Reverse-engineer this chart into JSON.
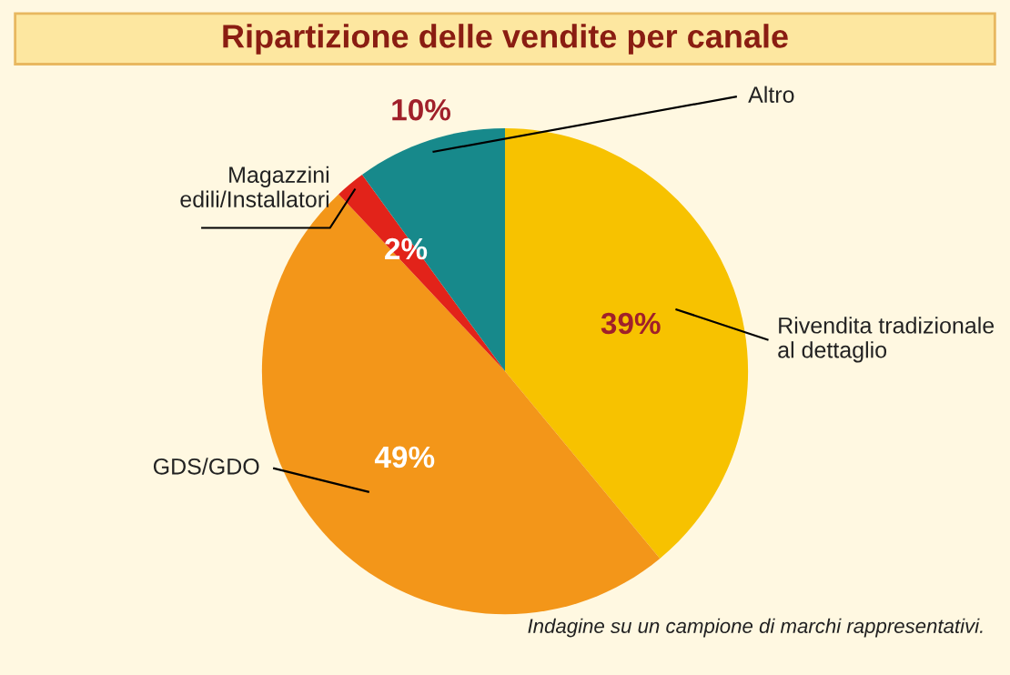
{
  "chart_data": {
    "type": "pie",
    "title": "Ripartizione delle vendite per canale",
    "categories": [
      "Rivendita tradizionale\nal dettaglio",
      "GDS/GDO",
      "Magazzini\nedili/Installatori",
      "Altro"
    ],
    "values": [
      39,
      49,
      2,
      10
    ],
    "colors": [
      "#f7c200",
      "#f39619",
      "#e2231a",
      "#17898b"
    ],
    "value_labels": [
      "39%",
      "49%",
      "2%",
      "10%"
    ],
    "legend": false,
    "annotations": [
      "Indagine su un campione di marchi rappresentativi."
    ]
  }
}
